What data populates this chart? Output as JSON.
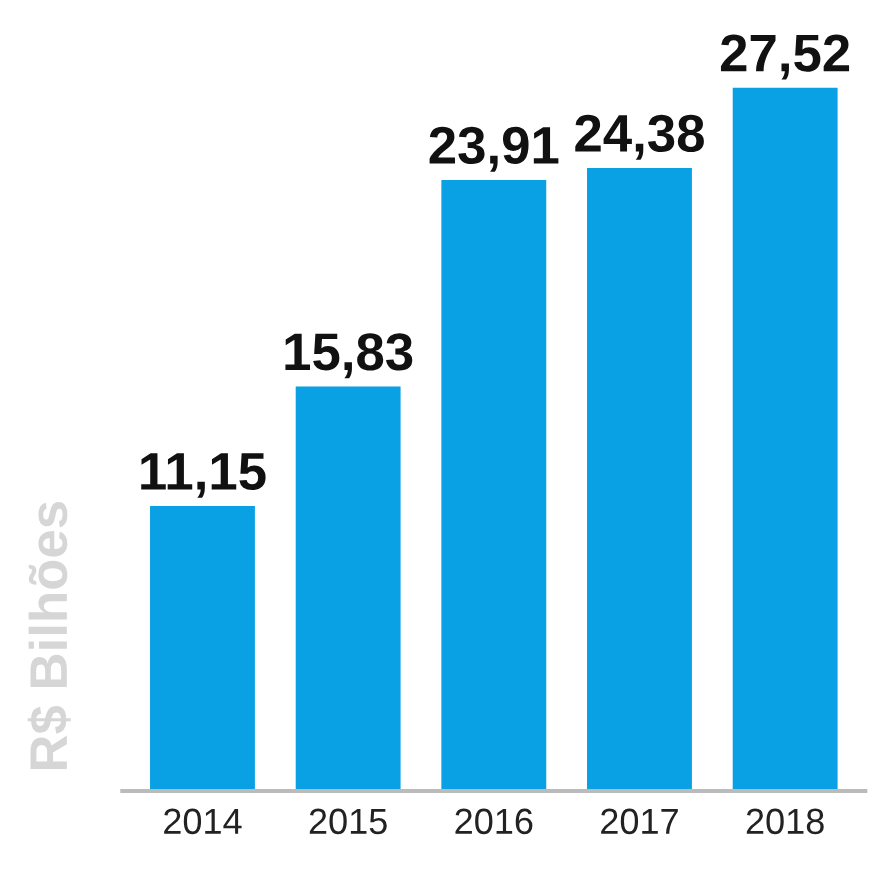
{
  "chart_data": {
    "type": "bar",
    "ylabel": "R$ Bilhões",
    "categories": [
      "2014",
      "2015",
      "2016",
      "2017",
      "2018"
    ],
    "values": [
      11.15,
      15.83,
      23.91,
      24.38,
      27.52
    ],
    "value_labels": [
      "11,15",
      "15,83",
      "23,91",
      "24,38",
      "27,52"
    ],
    "color": "#0aa0e4",
    "grid": false,
    "legend": false
  }
}
